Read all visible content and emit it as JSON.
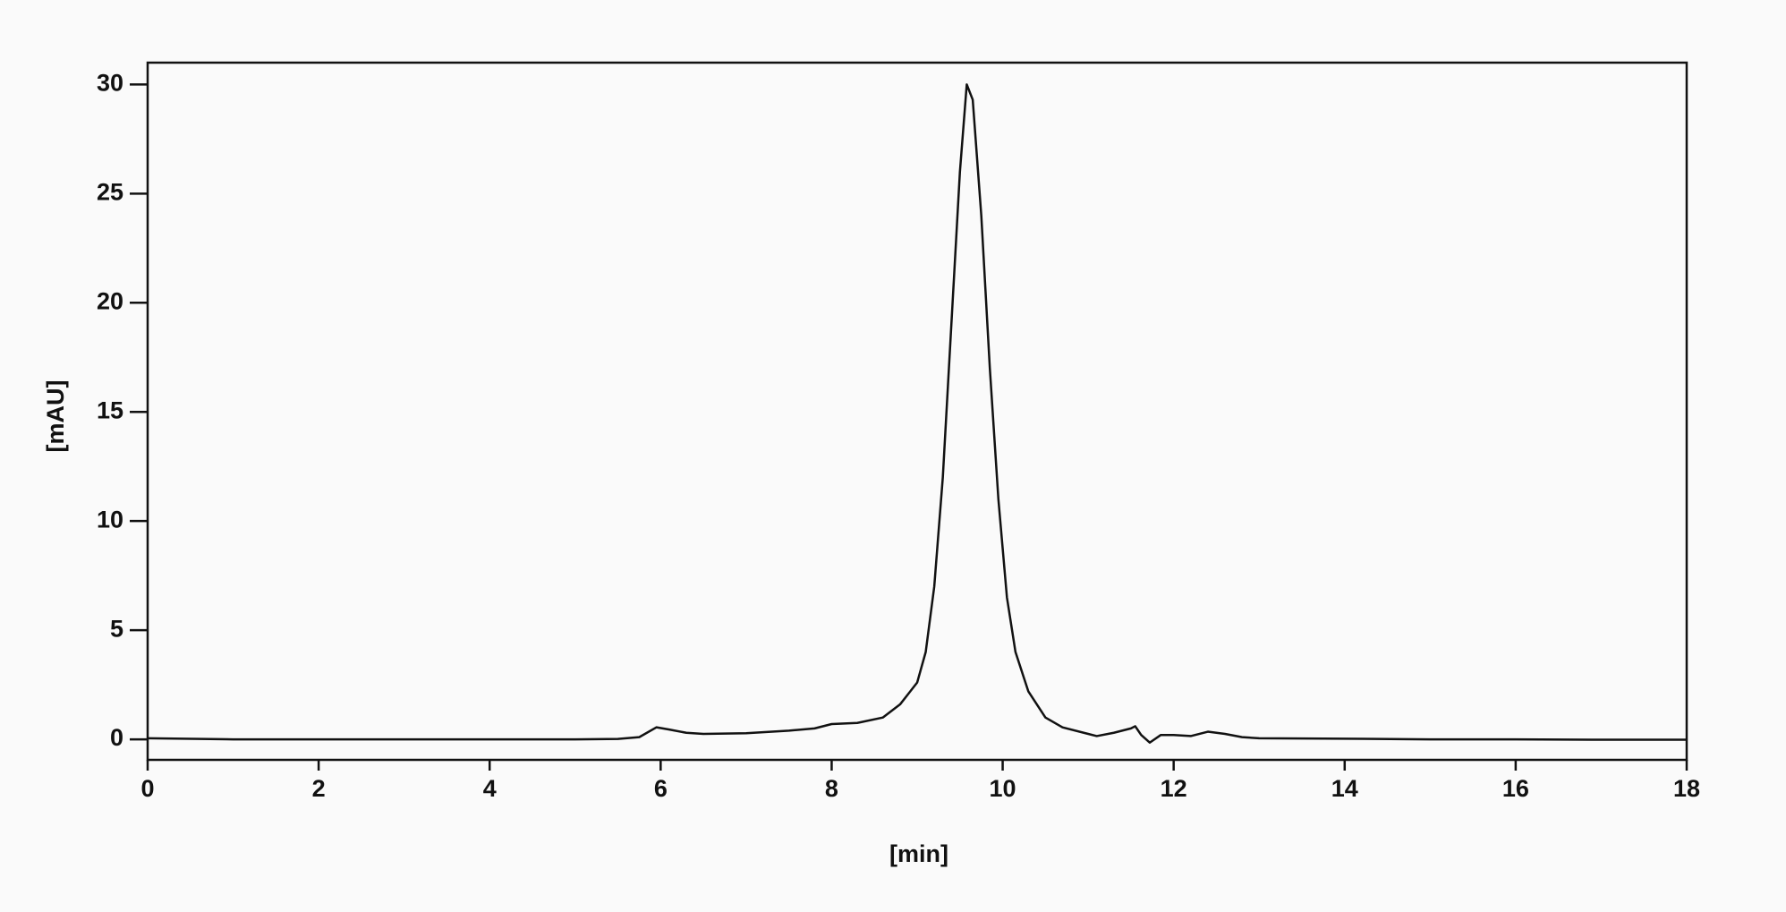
{
  "chart_data": {
    "type": "line",
    "x_label": "[min]",
    "y_label": "[mAU]",
    "xlim": [
      0,
      18
    ],
    "xticks": [
      0,
      2,
      4,
      6,
      8,
      10,
      12,
      14,
      16,
      18
    ],
    "ylim": [
      -0.94,
      31
    ],
    "yticks": [
      0,
      5,
      10,
      15,
      20,
      25,
      30
    ],
    "series": [
      {
        "color": "#111111",
        "x": [
          0,
          1,
          2,
          3,
          4,
          5,
          5.5,
          5.75,
          5.95,
          6.1,
          6.3,
          6.5,
          7,
          7.5,
          7.8,
          8.0,
          8.3,
          8.6,
          8.8,
          9.0,
          9.1,
          9.2,
          9.3,
          9.4,
          9.5,
          9.58,
          9.65,
          9.75,
          9.85,
          9.95,
          10.05,
          10.15,
          10.3,
          10.5,
          10.7,
          11.0,
          11.1,
          11.3,
          11.5,
          11.55,
          11.62,
          11.72,
          11.85,
          12.0,
          12.2,
          12.4,
          12.6,
          12.8,
          13,
          14,
          15,
          16,
          17,
          18
        ],
        "values": [
          0.05,
          0.0,
          0.0,
          0.0,
          0.0,
          0.0,
          0.02,
          0.1,
          0.55,
          0.45,
          0.3,
          0.25,
          0.28,
          0.4,
          0.5,
          0.7,
          0.75,
          1.0,
          1.6,
          2.6,
          4,
          7,
          12,
          19,
          26,
          30,
          29.3,
          24,
          17,
          11,
          6.5,
          4,
          2.2,
          1.0,
          0.55,
          0.25,
          0.15,
          0.3,
          0.5,
          0.6,
          0.2,
          -0.15,
          0.2,
          0.2,
          0.15,
          0.35,
          0.25,
          0.1,
          0.05,
          0.03,
          0.0,
          0.0,
          -0.02,
          -0.02
        ]
      }
    ]
  }
}
